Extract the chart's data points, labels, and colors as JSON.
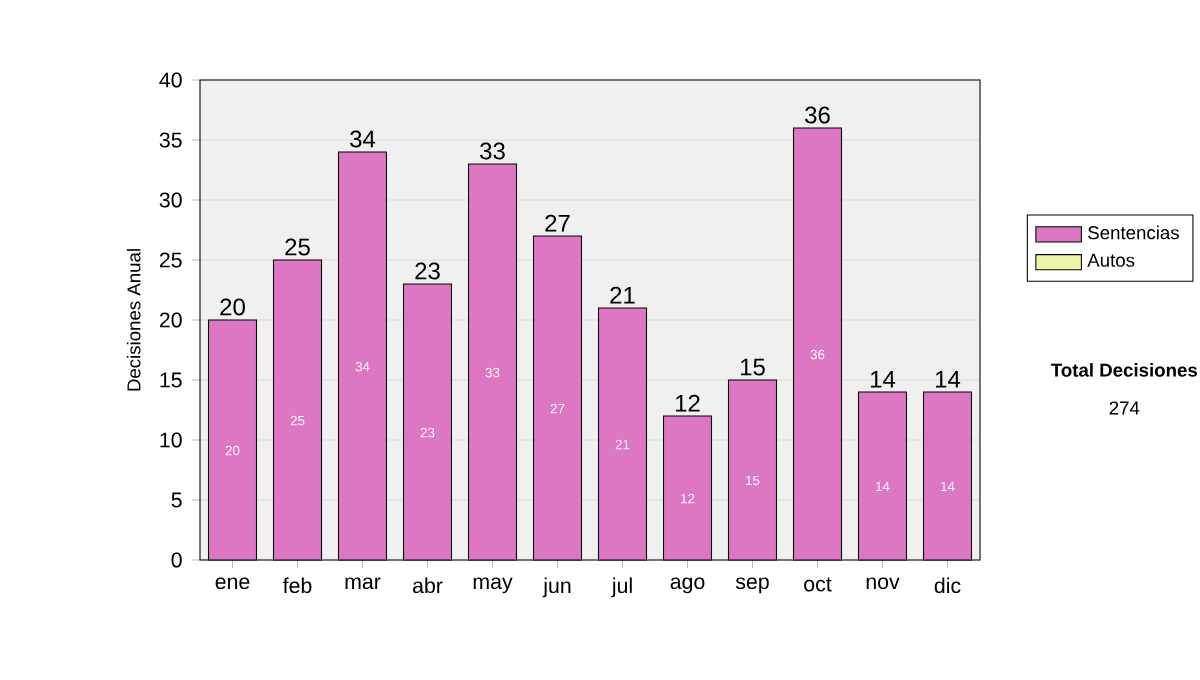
{
  "chart_data": {
    "type": "bar",
    "stacked": true,
    "ylabel": "Decisiones Anual",
    "categories": [
      "ene",
      "feb",
      "mar",
      "abr",
      "may",
      "jun",
      "jul",
      "ago",
      "sep",
      "oct",
      "nov",
      "dic"
    ],
    "series": [
      {
        "name": "Sentencias",
        "color": "#dd77c4",
        "values": [
          20,
          25,
          34,
          23,
          33,
          27,
          21,
          12,
          15,
          36,
          14,
          14
        ]
      },
      {
        "name": "Autos",
        "color": "#eef5a8",
        "values": [
          null,
          null,
          null,
          null,
          null,
          null,
          null,
          null,
          null,
          null,
          null,
          null
        ]
      }
    ],
    "totals": [
      "20",
      "25",
      "34",
      "23",
      "33",
      "27",
      "21",
      "12",
      "15",
      "36",
      "14",
      "14"
    ],
    "data_labels": true,
    "ylim": [
      0,
      40
    ],
    "yticks": [
      0,
      5,
      10,
      15,
      20,
      25,
      30,
      35,
      40
    ],
    "grid": "y",
    "legend": "right",
    "annotations": [
      "Total Decisiones",
      "274"
    ]
  }
}
